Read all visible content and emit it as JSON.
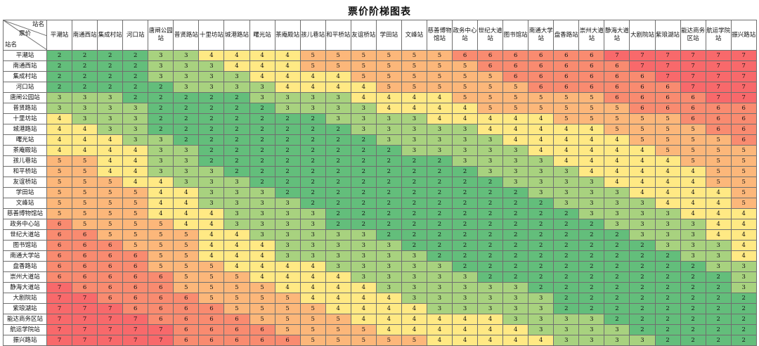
{
  "title": "票价阶梯图表",
  "corner": {
    "column_header_label": "站名",
    "center_label": "票价",
    "row_header_label": "站名"
  },
  "stations": [
    "平潮站",
    "南通西站",
    "集成村站",
    "河口站",
    "唐闸公园站",
    "普贤路站",
    "十里坊站",
    "城港路站",
    "曙光站",
    "茶庵殿站",
    "孩儿巷站",
    "和平桥站",
    "友谊桥站",
    "学田站",
    "文峰站",
    "慈善博物馆站",
    "政务中心站",
    "世纪大道站",
    "图书馆站",
    "南通大学站",
    "盘香路站",
    "崇州大道站",
    "静海大道站",
    "大剧院站",
    "紫琅湖站",
    "能达商务区站",
    "航运学院站",
    "振兴路站"
  ],
  "fare_colors": {
    "2": "#63be7b",
    "3": "#a8d27f",
    "4": "#ffe984",
    "5": "#fcb77a",
    "6": "#f98b70",
    "7": "#f8696b"
  },
  "fares": [
    [
      2,
      2,
      2,
      2,
      3,
      3,
      4,
      4,
      4,
      4,
      5,
      5,
      5,
      5,
      5,
      5,
      6,
      6,
      6,
      6,
      6,
      6,
      7,
      7,
      7,
      7,
      7,
      7
    ],
    [
      2,
      2,
      2,
      2,
      3,
      3,
      3,
      4,
      4,
      4,
      5,
      5,
      5,
      5,
      5,
      5,
      5,
      6,
      6,
      6,
      6,
      6,
      6,
      7,
      7,
      7,
      7,
      7
    ],
    [
      2,
      2,
      2,
      2,
      3,
      3,
      3,
      3,
      4,
      4,
      4,
      4,
      5,
      5,
      5,
      5,
      5,
      5,
      6,
      6,
      6,
      6,
      6,
      6,
      7,
      7,
      7,
      7
    ],
    [
      2,
      2,
      2,
      2,
      2,
      3,
      3,
      3,
      3,
      4,
      4,
      4,
      4,
      5,
      5,
      5,
      5,
      5,
      5,
      6,
      6,
      6,
      6,
      6,
      6,
      7,
      7,
      7
    ],
    [
      3,
      3,
      3,
      2,
      2,
      2,
      2,
      2,
      3,
      3,
      3,
      3,
      4,
      4,
      4,
      4,
      5,
      5,
      5,
      5,
      5,
      5,
      6,
      6,
      6,
      6,
      7,
      7
    ],
    [
      3,
      3,
      3,
      3,
      2,
      2,
      2,
      2,
      2,
      3,
      3,
      3,
      3,
      4,
      4,
      4,
      4,
      5,
      5,
      5,
      5,
      5,
      5,
      6,
      6,
      6,
      6,
      6
    ],
    [
      4,
      3,
      3,
      3,
      2,
      2,
      2,
      2,
      2,
      2,
      2,
      3,
      3,
      3,
      3,
      4,
      4,
      4,
      4,
      4,
      5,
      5,
      5,
      5,
      5,
      6,
      6,
      6
    ],
    [
      4,
      4,
      3,
      3,
      2,
      2,
      2,
      2,
      2,
      2,
      2,
      2,
      3,
      3,
      3,
      3,
      3,
      4,
      4,
      4,
      4,
      4,
      5,
      5,
      5,
      5,
      6,
      6
    ],
    [
      4,
      4,
      4,
      3,
      3,
      2,
      2,
      2,
      2,
      2,
      2,
      2,
      2,
      3,
      3,
      3,
      3,
      3,
      4,
      4,
      4,
      4,
      4,
      5,
      5,
      5,
      5,
      6
    ],
    [
      4,
      4,
      4,
      4,
      3,
      3,
      2,
      2,
      2,
      2,
      2,
      2,
      2,
      2,
      3,
      3,
      3,
      3,
      3,
      4,
      4,
      4,
      4,
      4,
      5,
      5,
      5,
      5
    ],
    [
      5,
      5,
      4,
      4,
      3,
      3,
      2,
      2,
      2,
      2,
      2,
      2,
      2,
      2,
      2,
      2,
      3,
      3,
      3,
      3,
      4,
      4,
      4,
      4,
      4,
      5,
      5,
      5
    ],
    [
      5,
      5,
      4,
      4,
      3,
      3,
      3,
      2,
      2,
      2,
      2,
      2,
      2,
      2,
      2,
      2,
      2,
      3,
      3,
      3,
      3,
      4,
      4,
      4,
      4,
      4,
      5,
      5
    ],
    [
      5,
      5,
      5,
      4,
      4,
      3,
      3,
      3,
      2,
      2,
      2,
      2,
      2,
      2,
      2,
      2,
      2,
      2,
      3,
      3,
      3,
      3,
      4,
      4,
      4,
      4,
      5,
      5
    ],
    [
      5,
      5,
      5,
      5,
      4,
      4,
      3,
      3,
      3,
      2,
      2,
      2,
      2,
      2,
      2,
      2,
      2,
      2,
      2,
      3,
      3,
      3,
      3,
      4,
      4,
      4,
      4,
      5
    ],
    [
      5,
      5,
      5,
      5,
      4,
      4,
      3,
      3,
      3,
      3,
      2,
      2,
      2,
      2,
      2,
      2,
      2,
      2,
      2,
      2,
      3,
      3,
      3,
      3,
      4,
      4,
      4,
      5
    ],
    [
      5,
      5,
      5,
      5,
      4,
      4,
      4,
      3,
      3,
      3,
      3,
      2,
      2,
      2,
      2,
      2,
      2,
      2,
      2,
      2,
      2,
      3,
      3,
      3,
      3,
      4,
      4,
      4
    ],
    [
      6,
      5,
      5,
      5,
      5,
      4,
      4,
      3,
      3,
      3,
      3,
      2,
      2,
      2,
      2,
      2,
      2,
      2,
      2,
      2,
      2,
      2,
      3,
      3,
      3,
      3,
      4,
      4
    ],
    [
      6,
      6,
      5,
      5,
      5,
      5,
      4,
      4,
      3,
      3,
      3,
      3,
      3,
      2,
      2,
      2,
      2,
      2,
      2,
      2,
      2,
      2,
      2,
      3,
      3,
      3,
      4,
      4
    ],
    [
      6,
      6,
      6,
      5,
      5,
      5,
      4,
      4,
      4,
      3,
      3,
      3,
      3,
      3,
      2,
      2,
      2,
      2,
      2,
      2,
      2,
      2,
      2,
      2,
      3,
      3,
      3,
      4
    ],
    [
      6,
      6,
      6,
      6,
      5,
      5,
      4,
      4,
      4,
      3,
      3,
      3,
      3,
      3,
      3,
      2,
      2,
      2,
      2,
      2,
      2,
      2,
      2,
      2,
      2,
      3,
      3,
      4
    ],
    [
      6,
      6,
      6,
      6,
      5,
      5,
      5,
      4,
      4,
      4,
      4,
      3,
      3,
      3,
      3,
      3,
      2,
      2,
      2,
      2,
      2,
      2,
      2,
      2,
      2,
      2,
      3,
      3
    ],
    [
      6,
      6,
      6,
      6,
      6,
      5,
      5,
      5,
      4,
      4,
      4,
      4,
      3,
      3,
      3,
      3,
      3,
      2,
      2,
      2,
      2,
      2,
      2,
      2,
      2,
      2,
      2,
      3
    ],
    [
      7,
      6,
      6,
      6,
      6,
      5,
      5,
      5,
      5,
      4,
      4,
      4,
      4,
      3,
      3,
      3,
      3,
      3,
      3,
      2,
      2,
      2,
      2,
      2,
      2,
      2,
      2,
      3
    ],
    [
      7,
      7,
      6,
      6,
      6,
      6,
      5,
      5,
      5,
      5,
      4,
      4,
      4,
      4,
      3,
      3,
      3,
      3,
      3,
      3,
      2,
      2,
      2,
      2,
      2,
      2,
      2,
      2
    ],
    [
      7,
      7,
      7,
      6,
      6,
      6,
      6,
      5,
      5,
      5,
      5,
      4,
      4,
      4,
      4,
      3,
      3,
      3,
      3,
      3,
      2,
      2,
      2,
      2,
      2,
      2,
      2,
      2
    ],
    [
      7,
      7,
      7,
      7,
      6,
      6,
      6,
      6,
      5,
      5,
      5,
      5,
      4,
      4,
      4,
      4,
      4,
      4,
      3,
      3,
      3,
      3,
      2,
      2,
      2,
      2,
      2,
      2
    ],
    [
      7,
      7,
      7,
      7,
      7,
      6,
      6,
      6,
      6,
      5,
      5,
      5,
      5,
      4,
      4,
      4,
      4,
      4,
      4,
      3,
      3,
      3,
      3,
      2,
      2,
      2,
      2,
      2
    ],
    [
      7,
      7,
      7,
      7,
      7,
      6,
      6,
      6,
      6,
      6,
      5,
      5,
      5,
      5,
      5,
      4,
      4,
      4,
      4,
      4,
      3,
      3,
      3,
      3,
      2,
      2,
      2,
      2
    ]
  ]
}
